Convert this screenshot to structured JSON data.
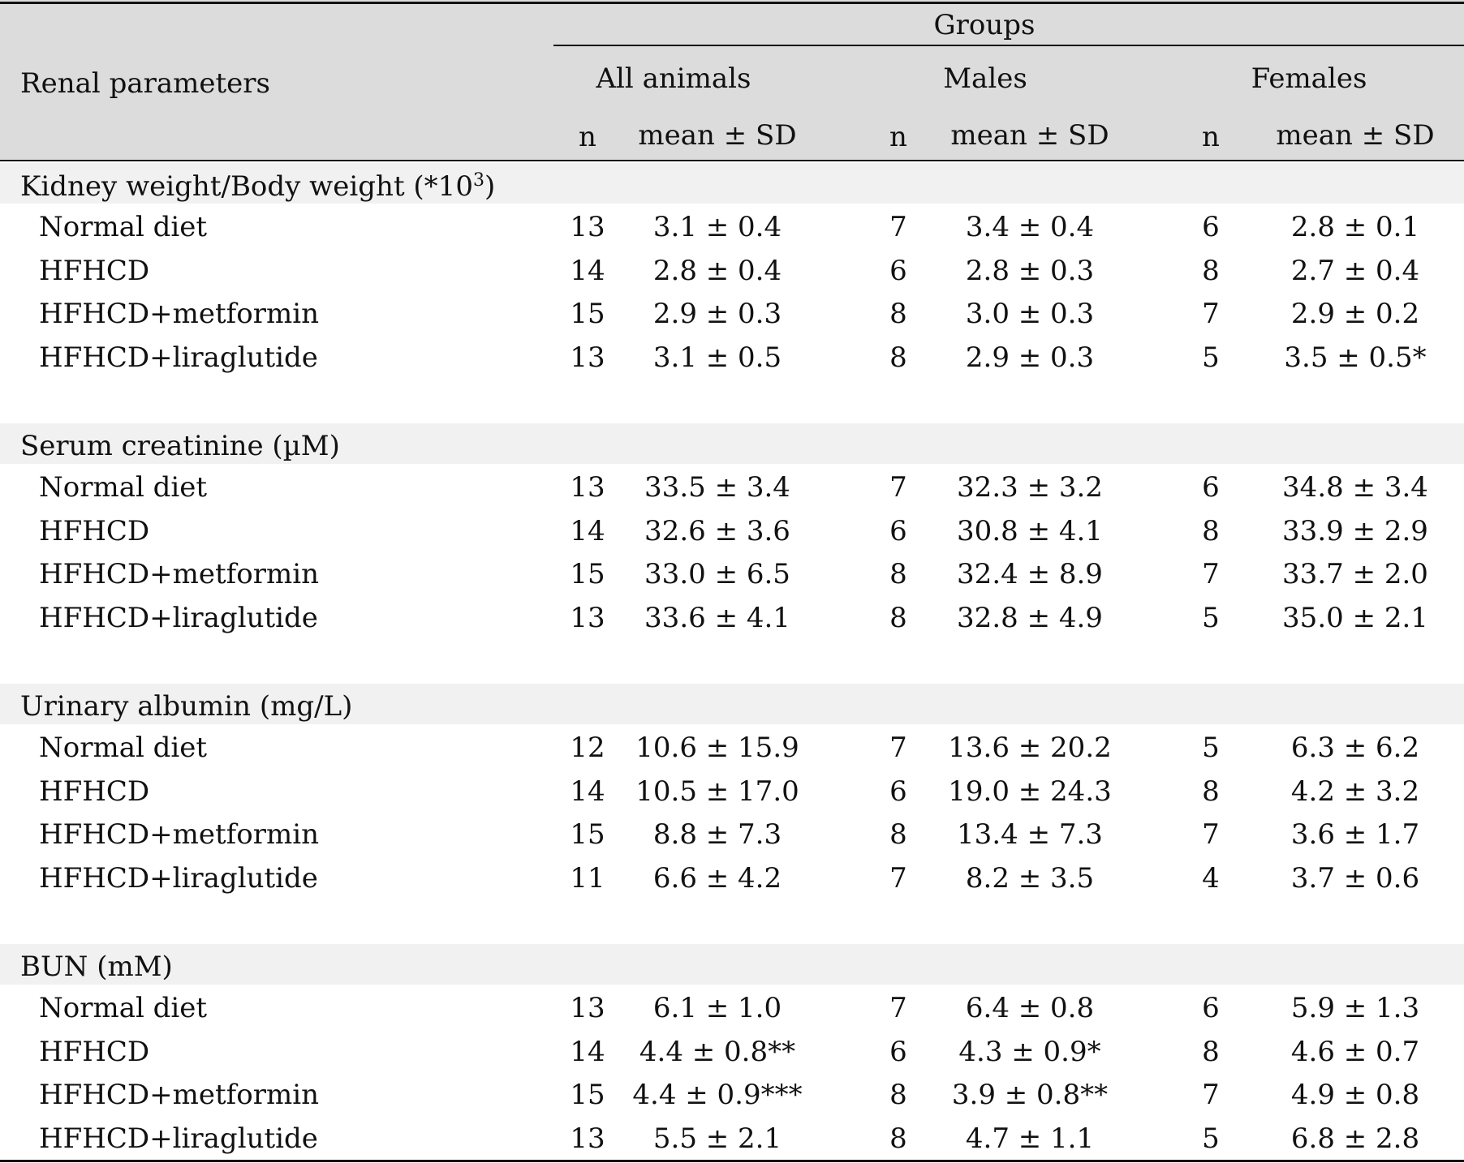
{
  "header": {
    "row_label": "Renal parameters",
    "groups_label": "Groups",
    "columns": [
      {
        "group": "All animals",
        "n_label": "n",
        "stat_label": "mean ± SD"
      },
      {
        "group": "Males",
        "n_label": "n",
        "stat_label": "mean ± SD"
      },
      {
        "group": "Females",
        "n_label": "n",
        "stat_label": "mean ± SD"
      }
    ]
  },
  "sections": [
    {
      "title": "Kidney weight/Body weight (*10",
      "title_sup": "3",
      "title_end": ")",
      "rows": [
        {
          "label": "Normal diet",
          "cells": [
            "13",
            "3.1 ± 0.4",
            "7",
            "3.4 ± 0.4",
            "6",
            "2.8 ± 0.1"
          ]
        },
        {
          "label": "HFHCD",
          "cells": [
            "14",
            "2.8 ± 0.4",
            "6",
            "2.8 ± 0.3",
            "8",
            "2.7 ± 0.4"
          ]
        },
        {
          "label": "HFHCD+metformin",
          "cells": [
            "15",
            "2.9 ± 0.3",
            "8",
            "3.0 ± 0.3",
            "7",
            "2.9 ± 0.2"
          ]
        },
        {
          "label": "HFHCD+liraglutide",
          "cells": [
            "13",
            "3.1 ± 0.5",
            "8",
            "2.9 ± 0.3",
            "5",
            "3.5 ± 0.5*"
          ]
        }
      ]
    },
    {
      "title": "Serum creatinine (µM)",
      "rows": [
        {
          "label": "Normal diet",
          "cells": [
            "13",
            "33.5 ± 3.4",
            "7",
            "32.3 ± 3.2",
            "6",
            "34.8 ± 3.4"
          ]
        },
        {
          "label": "HFHCD",
          "cells": [
            "14",
            "32.6 ± 3.6",
            "6",
            "30.8 ± 4.1",
            "8",
            "33.9 ± 2.9"
          ]
        },
        {
          "label": "HFHCD+metformin",
          "cells": [
            "15",
            "33.0 ± 6.5",
            "8",
            "32.4 ± 8.9",
            "7",
            "33.7 ± 2.0"
          ]
        },
        {
          "label": "HFHCD+liraglutide",
          "cells": [
            "13",
            "33.6 ± 4.1",
            "8",
            "32.8 ± 4.9",
            "5",
            "35.0 ± 2.1"
          ]
        }
      ]
    },
    {
      "title": "Urinary albumin (mg/L)",
      "rows": [
        {
          "label": "Normal diet",
          "cells": [
            "12",
            "10.6 ± 15.9",
            "7",
            "13.6 ± 20.2",
            "5",
            "6.3 ± 6.2"
          ]
        },
        {
          "label": "HFHCD",
          "cells": [
            "14",
            "10.5 ± 17.0",
            "6",
            "19.0 ± 24.3",
            "8",
            "4.2 ± 3.2"
          ]
        },
        {
          "label": "HFHCD+metformin",
          "cells": [
            "15",
            "8.8 ± 7.3",
            "8",
            "13.4 ± 7.3",
            "7",
            "3.6 ± 1.7"
          ]
        },
        {
          "label": "HFHCD+liraglutide",
          "cells": [
            "11",
            "6.6 ± 4.2",
            "7",
            "8.2 ± 3.5",
            "4",
            "3.7 ± 0.6"
          ]
        }
      ]
    },
    {
      "title": "BUN (mM)",
      "rows": [
        {
          "label": "Normal diet",
          "cells": [
            "13",
            "6.1 ± 1.0",
            "7",
            "6.4 ± 0.8",
            "6",
            "5.9 ± 1.3"
          ]
        },
        {
          "label": "HFHCD",
          "cells": [
            "14",
            "4.4 ± 0.8**",
            "6",
            "4.3 ± 0.9*",
            "8",
            "4.6 ± 0.7"
          ]
        },
        {
          "label": "HFHCD+metformin",
          "cells": [
            "15",
            "4.4 ± 0.9***",
            "8",
            "3.9 ± 0.8**",
            "7",
            "4.9 ± 0.8"
          ]
        },
        {
          "label": "HFHCD+liraglutide",
          "cells": [
            "13",
            "5.5 ± 2.1",
            "8",
            "4.7 ± 1.1",
            "5",
            "6.8 ± 2.8"
          ]
        }
      ]
    }
  ]
}
